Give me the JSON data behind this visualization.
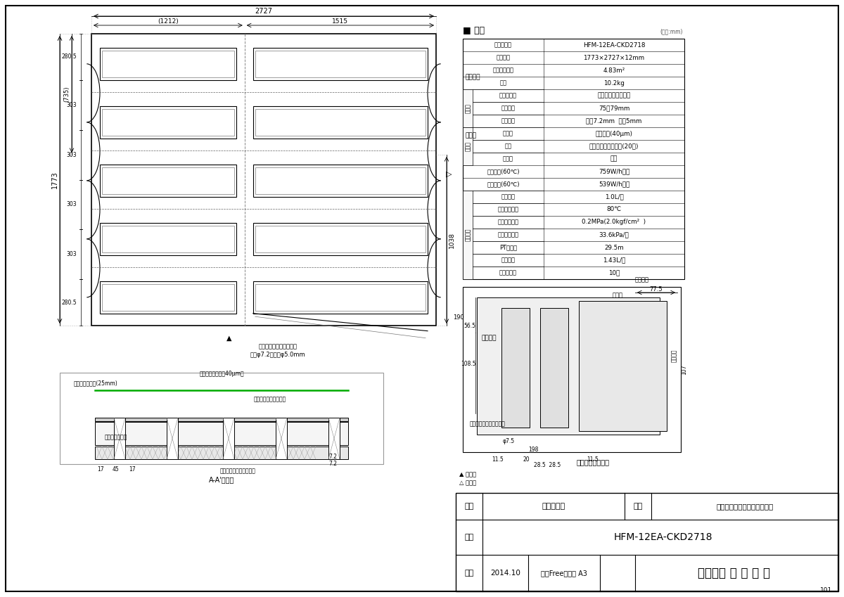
{
  "bg_color": "#ffffff",
  "line_color": "#000000",
  "title_spec": "■ 仕様",
  "unit_note": "(単位:mm)",
  "spec_rows": [
    [
      "名称・型式",
      "HFM-12EA-CKD2718"
    ],
    [
      "外形寸法",
      "1773×2727×12mm"
    ],
    [
      "有効放熱面積",
      "4.83m²"
    ],
    [
      "賯量",
      "10.2kg"
    ],
    [
      "材質・材料",
      "架橋ポリエチレン管"
    ],
    [
      "管ピッチ",
      "75～79mm"
    ],
    [
      "管サイズ",
      "外径7.2mm  内径5mm"
    ],
    [
      "表面材",
      "アルミ箔(40μm)"
    ],
    [
      "基材",
      "ポリスチレン発泡体(20倍)"
    ],
    [
      "裏面材",
      "なし"
    ],
    [
      "投入熱量(60℃)",
      "759W/h・枚"
    ],
    [
      "暑房能力(60℃)",
      "539W/h・枚"
    ],
    [
      "標準流量",
      "1.0L/分"
    ],
    [
      "最高使用温度",
      "80℃"
    ],
    [
      "最高使用圧力",
      "0.2MPa(2.0kgf/cm²  )"
    ],
    [
      "標準流量抗抗",
      "33.6kPa/枚"
    ],
    [
      "PT相当長",
      "29.5m"
    ],
    [
      "保有水量",
      "1.43L/枚"
    ],
    [
      "小根太溝数",
      "10本"
    ]
  ],
  "spec_group_labels": [
    {
      "label": "放熱管",
      "rows": [
        4,
        5,
        6
      ]
    },
    {
      "label": "マット",
      "rows": [
        7,
        8,
        9
      ]
    },
    {
      "label": "設計関係",
      "rows": [
        12,
        13,
        14,
        15,
        16,
        17,
        18
      ]
    }
  ],
  "dim_2727": "2727",
  "dim_1212": "(1212)",
  "dim_1515": "1515",
  "dim_1773": "1773",
  "dim_1038": "1038",
  "dim_735": "(735)",
  "dim_280_5_top": "280.5",
  "dim_303_1": "303",
  "dim_303_2": "303",
  "dim_303_3": "303",
  "dim_303_4": "303",
  "dim_280_5_bot": "280.5",
  "dim_190": "190",
  "section_label_aa": "A-A'詳細図",
  "pipe_label_line1": "架橋ポリエチレンパイプ",
  "pipe_label_line2": "外径φ7.2・内径φ5.0mm",
  "header_label": "ヘッダー",
  "kokoneta_label": "小小根太",
  "koneta_label": "小根太",
  "footer_hinmei": "小根太入りハード温水マット",
  "footer_model": "HFM-12EA-CKD2718",
  "footer_date": "2014.10",
  "footer_company": "リンナイ 株 式 会 社"
}
